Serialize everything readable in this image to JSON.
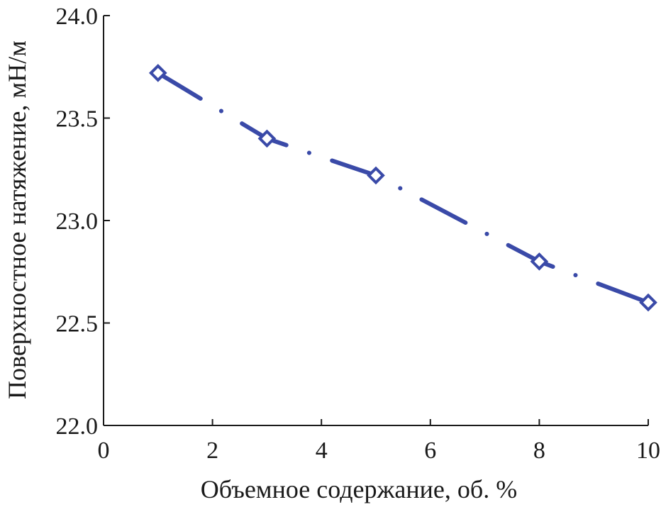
{
  "chart_data": {
    "type": "line",
    "xlabel": "Объемное содержание, об. %",
    "ylabel": "Поверхностное натяжение, мН/м",
    "xlim": [
      0,
      10
    ],
    "ylim": [
      22.0,
      24.0
    ],
    "x_ticks": [
      0,
      2,
      4,
      6,
      8,
      10
    ],
    "x_tick_labels": [
      "0",
      "2",
      "4",
      "6",
      "8",
      "10"
    ],
    "y_ticks": [
      22.0,
      22.5,
      23.0,
      23.5,
      24.0
    ],
    "y_tick_labels": [
      "22.0",
      "22.5",
      "23.0",
      "23.5",
      "24.0"
    ],
    "grid": false,
    "series": [
      {
        "x": [
          1,
          3,
          5,
          8,
          10
        ],
        "values": [
          23.72,
          23.4,
          23.22,
          22.8,
          22.6
        ],
        "marker": "diamond",
        "line_style": "dash-dot",
        "color": "#3a4aa8"
      }
    ]
  }
}
